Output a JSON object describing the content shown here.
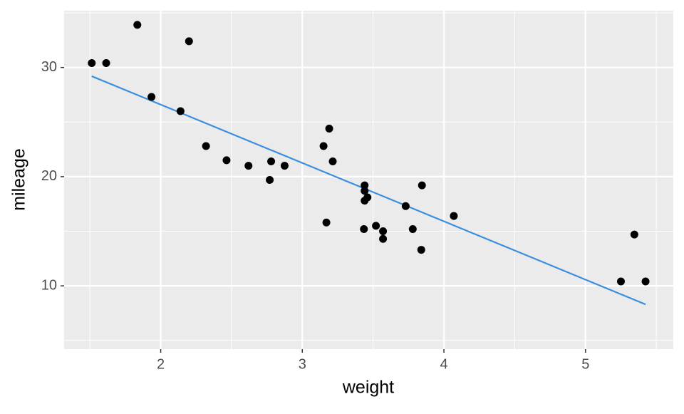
{
  "chart_data": {
    "type": "scatter",
    "x_label": "weight",
    "y_label": "mileage",
    "x": [
      2.62,
      2.875,
      2.32,
      3.215,
      3.44,
      3.46,
      3.57,
      3.19,
      3.15,
      3.44,
      3.44,
      4.07,
      3.73,
      3.78,
      5.25,
      5.424,
      5.345,
      2.2,
      1.615,
      1.835,
      2.465,
      3.52,
      3.435,
      3.84,
      3.845,
      1.935,
      2.14,
      1.513,
      3.17,
      2.77,
      3.57,
      2.78
    ],
    "values": [
      21.0,
      21.0,
      22.8,
      21.4,
      18.7,
      18.1,
      14.3,
      24.4,
      22.8,
      19.2,
      17.8,
      16.4,
      17.3,
      15.2,
      10.4,
      10.4,
      14.7,
      32.4,
      30.4,
      33.9,
      21.5,
      15.5,
      15.2,
      13.3,
      19.2,
      27.3,
      26.0,
      30.4,
      15.8,
      19.7,
      15.0,
      21.4
    ],
    "color": "#000000",
    "trend_line": {
      "x": [
        1.513,
        5.424
      ],
      "values": [
        29.2,
        8.3
      ],
      "color": "#3a8fde"
    },
    "xlim": [
      1.318,
      5.62
    ],
    "ylim": [
      4.2,
      35.2
    ],
    "xticks": [
      2,
      3,
      4,
      5
    ],
    "yticks": [
      10,
      20,
      30
    ],
    "minor_xticks": [
      1.5,
      2.5,
      3.5,
      4.5,
      5.5
    ],
    "minor_yticks": [
      5,
      15,
      25,
      35
    ],
    "grid": true
  }
}
